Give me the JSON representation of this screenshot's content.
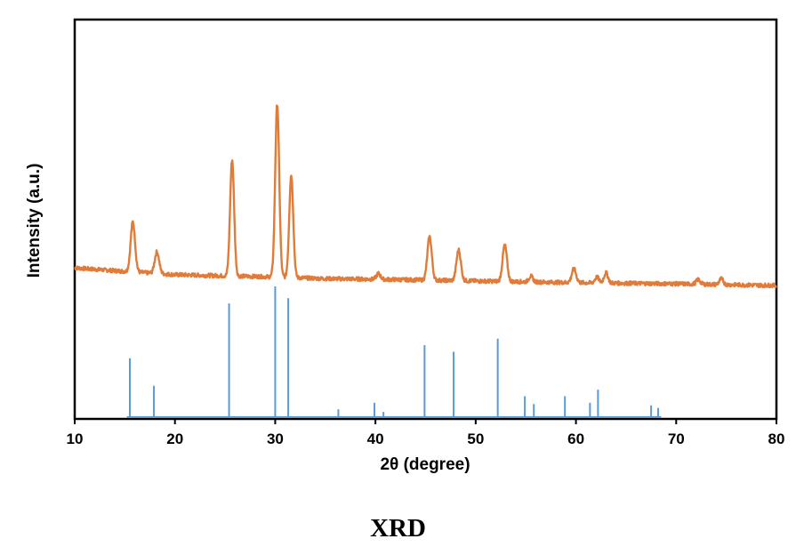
{
  "caption": "XRD",
  "chart_data": {
    "type": "line",
    "title": "",
    "xlabel": "2θ (degree)",
    "ylabel": "Intensity (a.u.)",
    "xlim": [
      10,
      80
    ],
    "xticks": [
      10,
      20,
      30,
      40,
      50,
      60,
      70,
      80
    ],
    "yticks_shown": false,
    "grid": false,
    "legend": "none",
    "series": [
      {
        "kind": "pattern",
        "color": "#E07B39",
        "baseline": [
          [
            10,
            0.155
          ],
          [
            14,
            0.13
          ],
          [
            20,
            0.095
          ],
          [
            25,
            0.085
          ],
          [
            30,
            0.075
          ],
          [
            35,
            0.06
          ],
          [
            40,
            0.055
          ],
          [
            50,
            0.04
          ],
          [
            60,
            0.025
          ],
          [
            70,
            0.015
          ],
          [
            80,
            0.0
          ]
        ],
        "peaks": [
          {
            "x": 15.8,
            "height": 0.44,
            "width": 0.22
          },
          {
            "x": 18.2,
            "height": 0.19,
            "width": 0.22
          },
          {
            "x": 25.7,
            "height": 1.02,
            "width": 0.2
          },
          {
            "x": 30.2,
            "height": 1.52,
            "width": 0.2
          },
          {
            "x": 31.6,
            "height": 0.9,
            "width": 0.2
          },
          {
            "x": 40.3,
            "height": 0.05,
            "width": 0.2
          },
          {
            "x": 45.4,
            "height": 0.38,
            "width": 0.22
          },
          {
            "x": 48.3,
            "height": 0.27,
            "width": 0.22
          },
          {
            "x": 52.9,
            "height": 0.32,
            "width": 0.22
          },
          {
            "x": 55.5,
            "height": 0.05,
            "width": 0.2
          },
          {
            "x": 59.8,
            "height": 0.12,
            "width": 0.22
          },
          {
            "x": 62.1,
            "height": 0.05,
            "width": 0.2
          },
          {
            "x": 63.0,
            "height": 0.09,
            "width": 0.2
          },
          {
            "x": 72.2,
            "height": 0.04,
            "width": 0.2
          },
          {
            "x": 74.5,
            "height": 0.05,
            "width": 0.2
          }
        ]
      },
      {
        "kind": "stick",
        "color": "#5B9BD5",
        "x": [
          15.5,
          17.9,
          25.4,
          30.0,
          31.3,
          36.3,
          39.9,
          40.8,
          44.9,
          47.8,
          52.2,
          54.9,
          55.8,
          58.9,
          61.4,
          62.2,
          67.5,
          68.2
        ],
        "y": [
          0.45,
          0.24,
          0.87,
          1.0,
          0.91,
          0.06,
          0.11,
          0.04,
          0.55,
          0.5,
          0.6,
          0.16,
          0.1,
          0.16,
          0.11,
          0.21,
          0.09,
          0.07
        ]
      }
    ]
  }
}
